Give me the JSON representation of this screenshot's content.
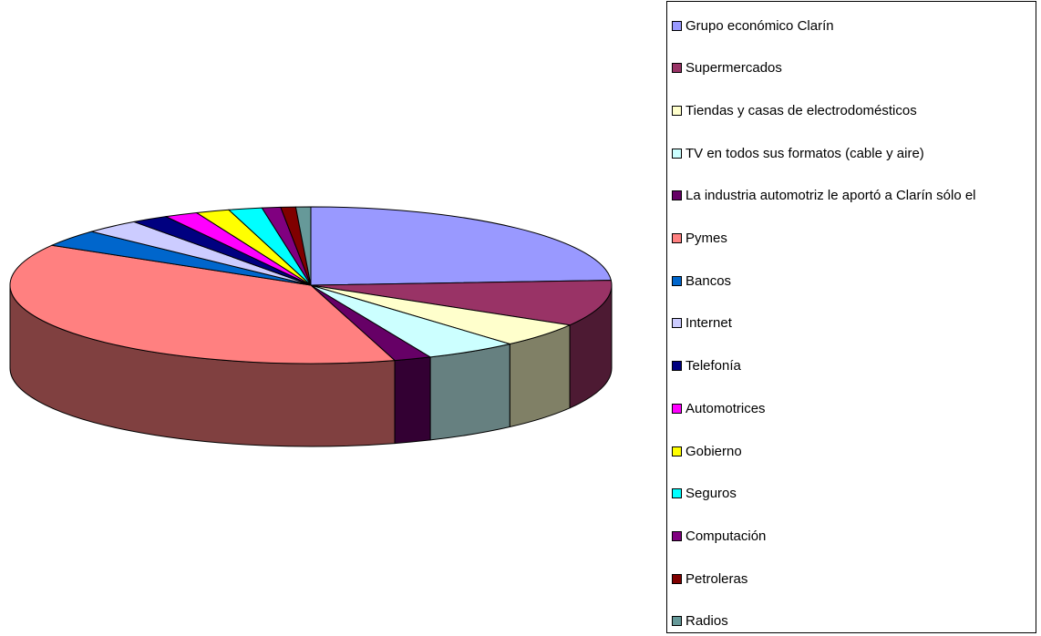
{
  "chart_data": {
    "type": "pie",
    "title": "",
    "legend_position": "right",
    "slices": [
      {
        "label": "Grupo económico Clarín",
        "value": 24.0,
        "color": "#9999FF"
      },
      {
        "label": "Supermercados",
        "value": 9.5,
        "color": "#993366"
      },
      {
        "label": "Tiendas y casas de electrodomésticos",
        "value": 5.0,
        "color": "#FFFFCC"
      },
      {
        "label": "TV en todos sus formatos (cable y aire)",
        "value": 5.0,
        "color": "#CCFFFF"
      },
      {
        "label": "La industria automotriz le aportó a Clarín sólo el",
        "value": 2.0,
        "color": "#660066"
      },
      {
        "label": "Pymes",
        "value": 38.0,
        "color": "#FF8080"
      },
      {
        "label": "Bancos",
        "value": 3.5,
        "color": "#0066CC"
      },
      {
        "label": "Internet",
        "value": 3.0,
        "color": "#CCCCFF"
      },
      {
        "label": "Telefonía",
        "value": 2.0,
        "color": "#000080"
      },
      {
        "label": "Automotrices",
        "value": 1.8,
        "color": "#FF00FF"
      },
      {
        "label": "Gobierno",
        "value": 1.8,
        "color": "#FFFF00"
      },
      {
        "label": "Seguros",
        "value": 1.8,
        "color": "#00FFFF"
      },
      {
        "label": "Computación",
        "value": 1.0,
        "color": "#800080"
      },
      {
        "label": "Petroleras",
        "value": 0.8,
        "color": "#800000"
      },
      {
        "label": "Radios",
        "value": 0.8,
        "color": "#669999"
      }
    ]
  }
}
